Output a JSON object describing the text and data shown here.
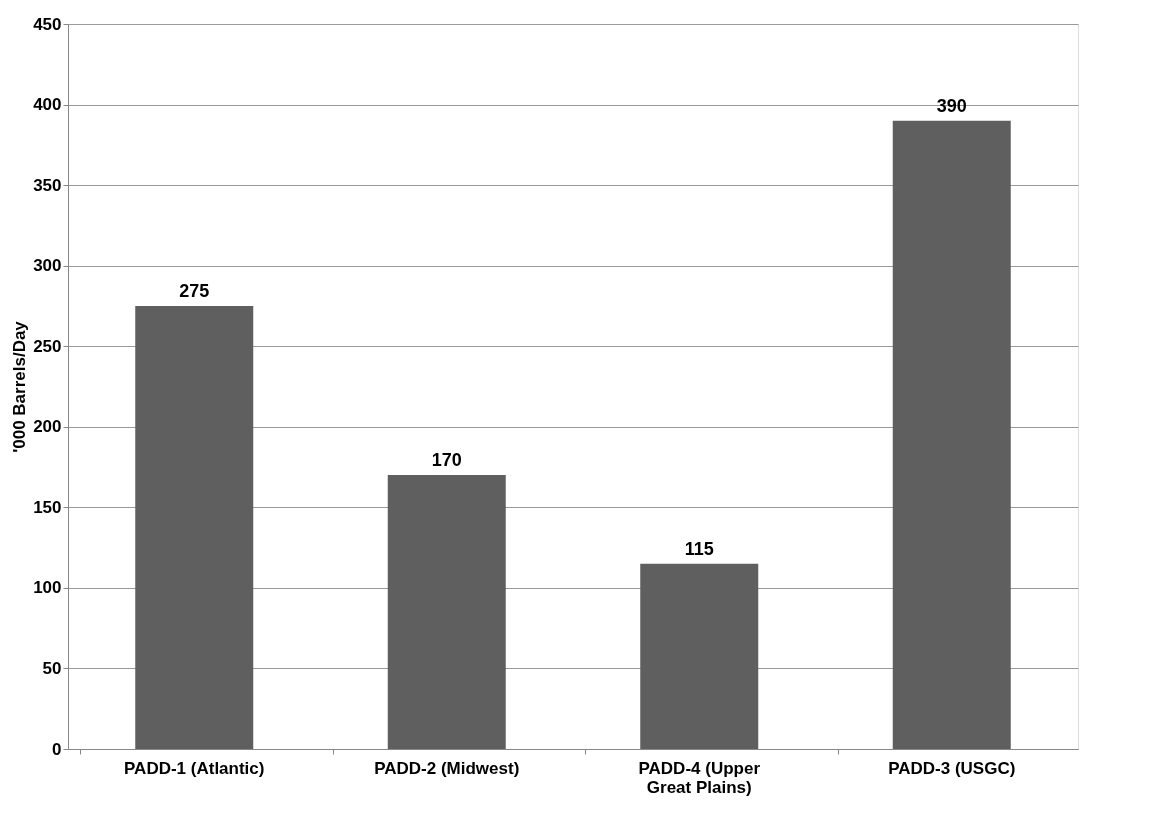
{
  "chart_data": {
    "type": "bar",
    "ylabel": "'000 Barrels/Day",
    "categories": [
      "PADD-1 (Atlantic)",
      "PADD-2 (Midwest)",
      "PADD-4 (Upper\nGreat Plains)",
      "PADD-3 (USGC)"
    ],
    "values": [
      275,
      170,
      115,
      390
    ],
    "color": "#5f5f5f",
    "ylim": [
      0,
      450
    ],
    "yticks": [
      0,
      50,
      100,
      150,
      200,
      250,
      300,
      350,
      400,
      450
    ],
    "grid": "y",
    "data_labels": true
  }
}
